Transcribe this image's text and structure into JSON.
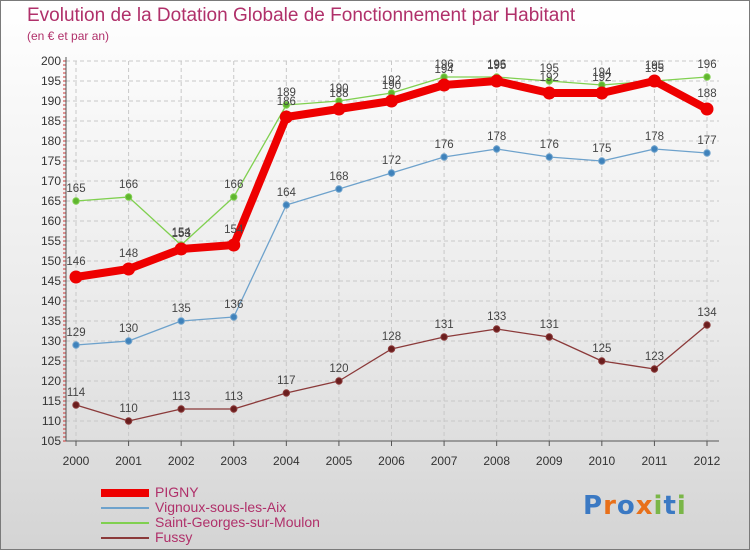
{
  "title": "Evolution de la Dotation Globale de Fonctionnement par Habitant",
  "subtitle": "(en € et par an)",
  "logo": {
    "text": "Proxiti",
    "letters": [
      "P",
      "r",
      "o",
      "x",
      "i",
      "t",
      "i"
    ],
    "colors": [
      "#3b79c3",
      "#e8701a",
      "#3b79c3",
      "#e8701a",
      "#7ab648",
      "#3b79c3",
      "#7ab648"
    ]
  },
  "chart_data": {
    "type": "line",
    "title": "Evolution de la Dotation Globale de Fonctionnement par Habitant",
    "ylabel": "(en € et par an)",
    "xlabel": "",
    "ylim": [
      105,
      200
    ],
    "yticks": [
      105,
      110,
      115,
      120,
      125,
      130,
      135,
      140,
      145,
      150,
      155,
      160,
      165,
      170,
      175,
      180,
      185,
      190,
      195,
      200
    ],
    "x": [
      "2000",
      "2001",
      "2002",
      "2003",
      "2004",
      "2005",
      "2006",
      "2007",
      "2008",
      "2009",
      "2010",
      "2011",
      "2012"
    ],
    "grid": true,
    "legend_position": "bottom-left",
    "series": [
      {
        "name": "Saint-Georges-sur-Moulon",
        "color": "#80d050",
        "marker": "#5fb52e",
        "emphasis": false,
        "values": [
          165,
          166,
          154,
          166,
          189,
          190,
          192,
          196,
          196,
          195,
          194,
          195,
          196
        ]
      },
      {
        "name": "Vignoux-sous-les-Aix",
        "color": "#6ea2cc",
        "marker": "#3f82bb",
        "emphasis": false,
        "values": [
          129,
          130,
          135,
          136,
          164,
          168,
          172,
          176,
          178,
          176,
          175,
          178,
          177
        ]
      },
      {
        "name": "Fussy",
        "color": "#8b3a3a",
        "marker": "#6a1e1e",
        "emphasis": false,
        "values": [
          114,
          110,
          113,
          113,
          117,
          120,
          128,
          131,
          133,
          131,
          125,
          123,
          134
        ]
      },
      {
        "name": "PIGNY",
        "color": "#ee0000",
        "marker": "#ee0000",
        "emphasis": true,
        "values": [
          146,
          148,
          153,
          154,
          186,
          188,
          190,
          194,
          195,
          192,
          192,
          195,
          188
        ]
      }
    ],
    "legend_order": [
      "PIGNY",
      "Vignoux-sous-les-Aix",
      "Saint-Georges-sur-Moulon",
      "Fussy"
    ]
  }
}
